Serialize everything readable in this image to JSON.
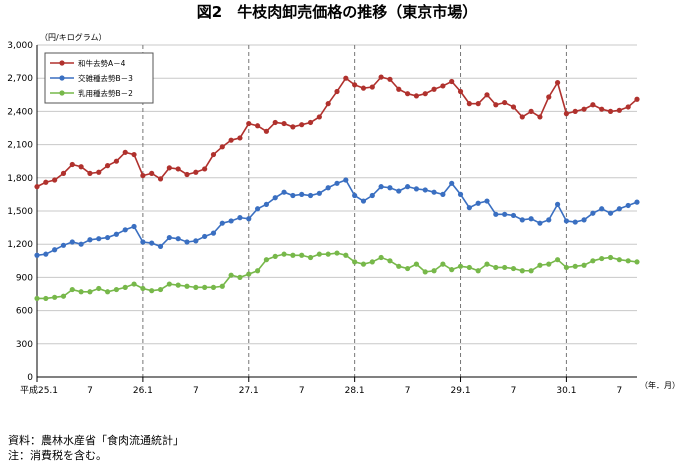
{
  "chart_data": {
    "type": "line",
    "title": "図2　牛枝肉卸売価格の推移（東京市場）",
    "ylabel": "（円/キログラム）",
    "xlabel": "（年．月）",
    "ylim": [
      0,
      3000
    ],
    "yticks": [
      0,
      300,
      600,
      900,
      1200,
      1500,
      1800,
      2100,
      2400,
      2700,
      3000
    ],
    "ytick_labels": [
      "0",
      "300",
      "600",
      "900",
      "1,200",
      "1,500",
      "1,800",
      "2,100",
      "2,400",
      "2,700",
      "3,000"
    ],
    "x_start_label": "平成25.1",
    "x_labels": [
      {
        "i": 0,
        "label": "25.1"
      },
      {
        "i": 6,
        "label": "7"
      },
      {
        "i": 12,
        "label": "26.1"
      },
      {
        "i": 18,
        "label": "7"
      },
      {
        "i": 24,
        "label": "27.1"
      },
      {
        "i": 30,
        "label": "7"
      },
      {
        "i": 36,
        "label": "28.1"
      },
      {
        "i": 42,
        "label": "7"
      },
      {
        "i": 48,
        "label": "29.1"
      },
      {
        "i": 54,
        "label": "7"
      },
      {
        "i": 60,
        "label": "30.1"
      },
      {
        "i": 66,
        "label": "7"
      }
    ],
    "year_dividers": [
      12,
      24,
      36,
      48,
      60
    ],
    "grid": true,
    "legend_position": "top-left",
    "series": [
      {
        "name": "和牛去勢A－4",
        "color": "#b0312d",
        "values": [
          1720,
          1760,
          1780,
          1840,
          1920,
          1900,
          1840,
          1850,
          1910,
          1950,
          2030,
          2010,
          1820,
          1840,
          1790,
          1890,
          1880,
          1830,
          1850,
          1880,
          2010,
          2080,
          2140,
          2160,
          2290,
          2270,
          2220,
          2300,
          2290,
          2260,
          2280,
          2300,
          2350,
          2470,
          2580,
          2700,
          2640,
          2610,
          2620,
          2710,
          2690,
          2600,
          2560,
          2540,
          2560,
          2600,
          2630,
          2670,
          2580,
          2470,
          2470,
          2550,
          2460,
          2480,
          2440,
          2350,
          2400,
          2350,
          2530,
          2660,
          2380,
          2400,
          2420,
          2460,
          2420,
          2400,
          2410,
          2440,
          2510
        ]
      },
      {
        "name": "交雑種去勢B－3",
        "color": "#3a6fc1",
        "values": [
          1100,
          1110,
          1150,
          1190,
          1220,
          1200,
          1240,
          1250,
          1260,
          1290,
          1330,
          1360,
          1220,
          1210,
          1180,
          1260,
          1250,
          1220,
          1230,
          1270,
          1300,
          1390,
          1410,
          1440,
          1430,
          1520,
          1560,
          1620,
          1670,
          1640,
          1650,
          1640,
          1660,
          1710,
          1750,
          1780,
          1640,
          1590,
          1640,
          1720,
          1710,
          1680,
          1720,
          1700,
          1690,
          1670,
          1650,
          1750,
          1650,
          1530,
          1570,
          1590,
          1470,
          1470,
          1460,
          1420,
          1430,
          1390,
          1420,
          1560,
          1410,
          1400,
          1420,
          1480,
          1520,
          1480,
          1520,
          1550,
          1580
        ]
      },
      {
        "name": "乳用種去勢B－2",
        "color": "#77b84a",
        "values": [
          710,
          710,
          720,
          730,
          790,
          770,
          770,
          800,
          770,
          790,
          810,
          840,
          800,
          780,
          790,
          840,
          830,
          820,
          810,
          810,
          810,
          820,
          920,
          900,
          930,
          960,
          1060,
          1090,
          1110,
          1100,
          1100,
          1080,
          1110,
          1110,
          1120,
          1100,
          1040,
          1020,
          1040,
          1080,
          1050,
          1000,
          980,
          1020,
          950,
          960,
          1020,
          970,
          1000,
          990,
          960,
          1020,
          990,
          990,
          980,
          960,
          960,
          1010,
          1020,
          1060,
          990,
          1000,
          1010,
          1050,
          1070,
          1080,
          1060,
          1050,
          1040
        ]
      }
    ]
  },
  "notes": {
    "source": "資料：農林水産省「食肉流通統計」",
    "tax": "注：消費税を含む。"
  }
}
